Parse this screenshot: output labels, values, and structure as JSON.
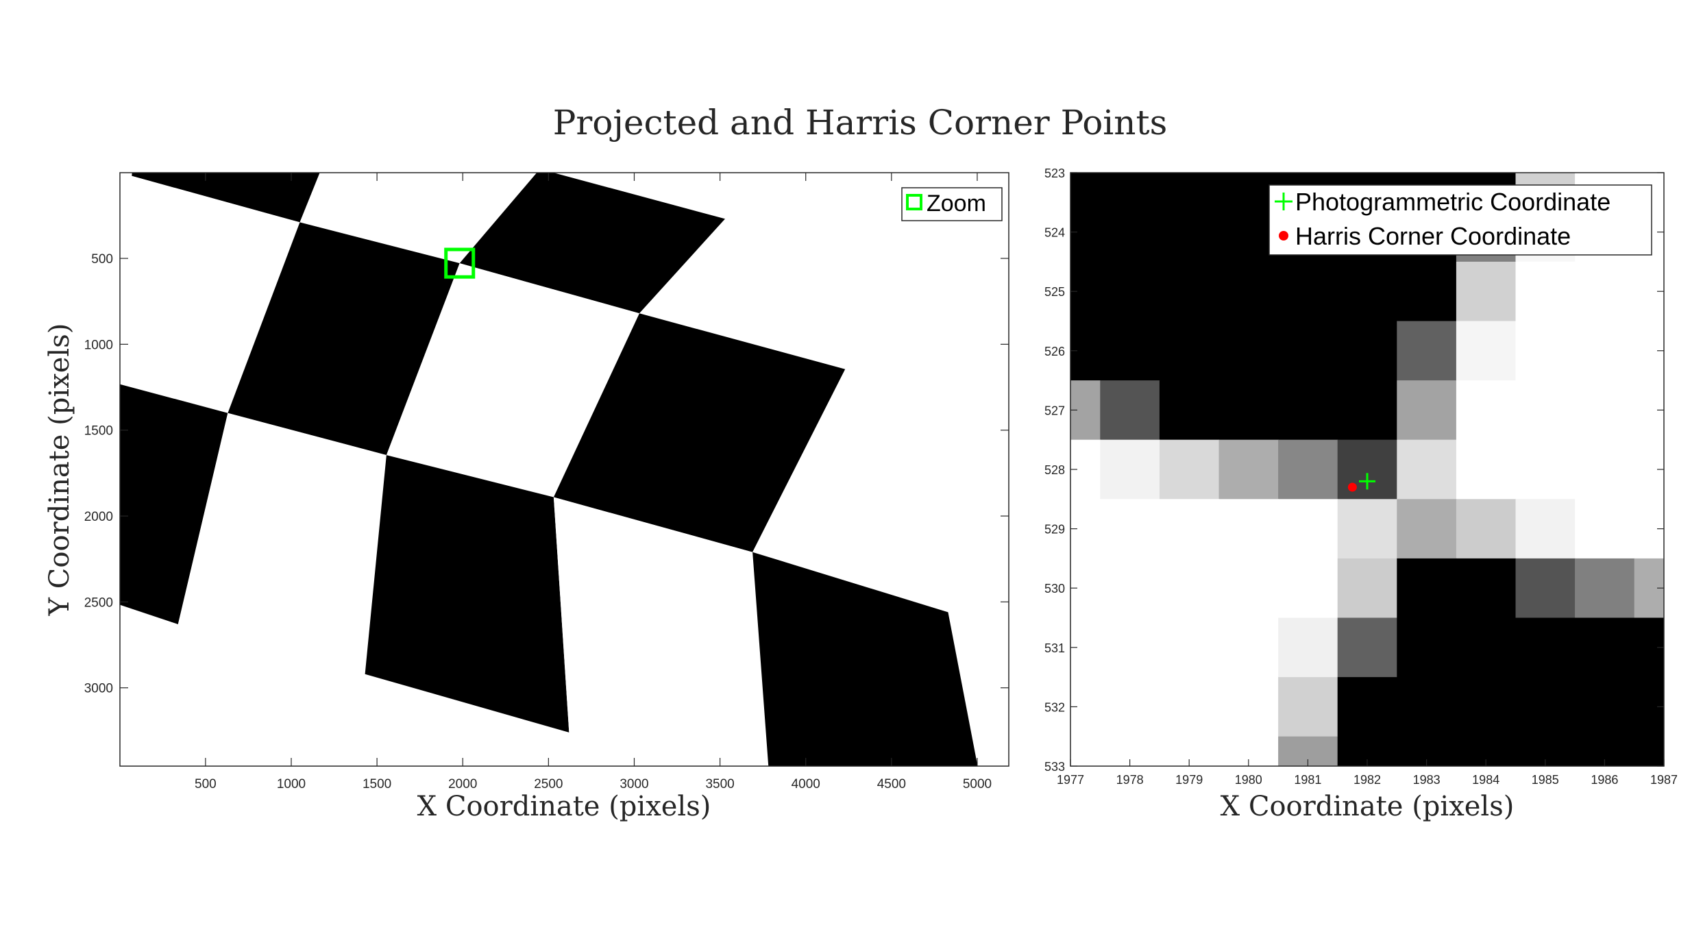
{
  "figure": {
    "title": "Projected and Harris Corner Points"
  },
  "chart_data": [
    {
      "type": "heatmap",
      "subtype": "image",
      "title": "",
      "xlabel": "X Coordinate (pixels)",
      "ylabel": "Y Coordinate (pixels)",
      "xlim": [
        1,
        5184
      ],
      "ylim": [
        1,
        3456
      ],
      "y_direction": "reversed",
      "xticks": [
        500,
        1000,
        1500,
        2000,
        2500,
        3000,
        3500,
        4000,
        4500,
        5000
      ],
      "yticks": [
        500,
        1000,
        1500,
        2000,
        2500,
        3000
      ],
      "legend": {
        "location": "top-right",
        "entries": [
          "Zoom"
        ]
      },
      "zoom_box": {
        "x_center": 1982,
        "y_center": 528,
        "half_size": 80,
        "color": "#00ff00",
        "label": "Zoom"
      },
      "checkerboard": {
        "colors": [
          "#000000",
          "#ffffff"
        ],
        "corners_row_a": [
          [
            -160,
            1190
          ],
          [
            630,
            1400
          ],
          [
            1555,
            1645
          ],
          [
            2530,
            1890
          ],
          [
            3690,
            2210
          ],
          [
            4830,
            2560
          ],
          [
            5300,
            2690
          ]
        ],
        "corners_row_b": [
          [
            70,
            20
          ],
          [
            1050,
            290
          ],
          [
            1982,
            528
          ],
          [
            3030,
            820
          ],
          [
            4230,
            1145
          ],
          [
            5300,
            1430
          ]
        ],
        "corners_row_top": [
          [
            120,
            -640
          ],
          [
            1300,
            -330
          ],
          [
            2450,
            -20
          ],
          [
            3530,
            270
          ],
          [
            4700,
            580
          ]
        ],
        "corners_row_c": [
          [
            -350,
            2400
          ],
          [
            340,
            2630
          ],
          [
            1430,
            2920
          ],
          [
            2620,
            3260
          ],
          [
            3790,
            3560
          ],
          [
            5080,
            3860
          ]
        ]
      }
    },
    {
      "type": "heatmap",
      "subtype": "image",
      "title": "",
      "xlabel": "X Coordinate (pixels)",
      "ylabel": "",
      "xlim": [
        1977,
        1987
      ],
      "ylim": [
        523,
        533
      ],
      "y_direction": "reversed",
      "xticks": [
        1977,
        1978,
        1979,
        1980,
        1981,
        1982,
        1983,
        1984,
        1985,
        1986,
        1987
      ],
      "yticks": [
        523,
        524,
        525,
        526,
        527,
        528,
        529,
        530,
        531,
        532,
        533
      ],
      "legend": {
        "location": "top-right",
        "entries": [
          "Photogrammetric Coordinate",
          "Harris Corner Coordinate"
        ]
      },
      "pixel_grid": {
        "x_start": 1977,
        "y_start": 523,
        "cell": 1,
        "values": [
          [
            0,
            0,
            0,
            0,
            0,
            0,
            0,
            0,
            0.82,
            1,
            1
          ],
          [
            0,
            0,
            0,
            0,
            0,
            0,
            0,
            0.5,
            0.97,
            1,
            1
          ],
          [
            0,
            0,
            0,
            0,
            0,
            0,
            0,
            0.82,
            1,
            1,
            1
          ],
          [
            0,
            0,
            0,
            0,
            0,
            0,
            0.38,
            0.96,
            1,
            1,
            1
          ],
          [
            0.64,
            0.33,
            0,
            0,
            0,
            0,
            0.64,
            1,
            1,
            1,
            1
          ],
          [
            1,
            0.95,
            0.85,
            0.68,
            0.53,
            0.25,
            0.87,
            1,
            1,
            1,
            1
          ],
          [
            1,
            1,
            1,
            1,
            1,
            0.88,
            0.68,
            0.8,
            0.95,
            1,
            1
          ],
          [
            1,
            1,
            1,
            1,
            1,
            0.8,
            0,
            0,
            0.33,
            0.5,
            0.68
          ],
          [
            1,
            1,
            1,
            1,
            0.94,
            0.38,
            0,
            0,
            0,
            0,
            0
          ],
          [
            1,
            1,
            1,
            1,
            0.82,
            0,
            0,
            0,
            0,
            0,
            0
          ],
          [
            1,
            1,
            1,
            1,
            0.62,
            0,
            0,
            0,
            0,
            0,
            0
          ]
        ]
      },
      "series": [
        {
          "name": "Photogrammetric Coordinate",
          "marker": "plus",
          "color": "#00ff00",
          "x": [
            1982.0
          ],
          "y": [
            528.2
          ]
        },
        {
          "name": "Harris Corner Coordinate",
          "marker": "dot",
          "color": "#ff0000",
          "x": [
            1981.75
          ],
          "y": [
            528.3
          ]
        }
      ]
    }
  ]
}
